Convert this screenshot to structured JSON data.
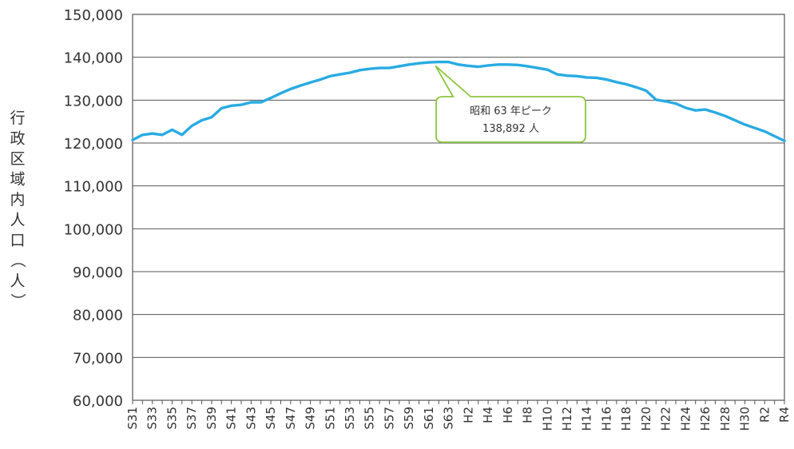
{
  "chart_data": {
    "type": "line",
    "ylabel": "行政区域内人口（人）",
    "xlabel": "",
    "title": "",
    "ylim": [
      60000,
      150000
    ],
    "y_ticks": [
      "60,000",
      "70,000",
      "80,000",
      "90,000",
      "100,000",
      "110,000",
      "120,000",
      "130,000",
      "140,000",
      "150,000"
    ],
    "y_tick_values": [
      60000,
      70000,
      80000,
      90000,
      100000,
      110000,
      120000,
      130000,
      140000,
      150000
    ],
    "grid": true,
    "legend": "none",
    "x_labels": [
      "S31",
      "S33",
      "S35",
      "S37",
      "S39",
      "S41",
      "S43",
      "S45",
      "S47",
      "S49",
      "S51",
      "S53",
      "S55",
      "S57",
      "S59",
      "S61",
      "S63",
      "H2",
      "H4",
      "H6",
      "H8",
      "H10",
      "H12",
      "H14",
      "H16",
      "H18",
      "H20",
      "H22",
      "H24",
      "H26",
      "H28",
      "H30",
      "R2",
      "R4"
    ],
    "x": [
      "S31",
      "S32",
      "S33",
      "S34",
      "S35",
      "S36",
      "S37",
      "S38",
      "S39",
      "S40",
      "S41",
      "S42",
      "S43",
      "S44",
      "S45",
      "S46",
      "S47",
      "S48",
      "S49",
      "S50",
      "S51",
      "S52",
      "S53",
      "S54",
      "S55",
      "S56",
      "S57",
      "S58",
      "S59",
      "S60",
      "S61",
      "S62",
      "S63",
      "H1",
      "H2",
      "H3",
      "H4",
      "H5",
      "H6",
      "H7",
      "H8",
      "H9",
      "H10",
      "H11",
      "H12",
      "H13",
      "H14",
      "H15",
      "H16",
      "H17",
      "H18",
      "H19",
      "H20",
      "H21",
      "H22",
      "H23",
      "H24",
      "H25",
      "H26",
      "H27",
      "H28",
      "H29",
      "H30",
      "R1",
      "R2",
      "R3",
      "R4"
    ],
    "series": [
      {
        "color": "#29abe2",
        "values": [
          120700,
          121900,
          122200,
          121900,
          123100,
          121900,
          124000,
          125300,
          126000,
          128100,
          128700,
          128900,
          129500,
          129500,
          130500,
          131600,
          132600,
          133400,
          134100,
          134800,
          135600,
          136000,
          136400,
          137000,
          137300,
          137500,
          137500,
          137900,
          138300,
          138600,
          138800,
          138892,
          138892,
          138300,
          138000,
          137800,
          138100,
          138300,
          138300,
          138200,
          137900,
          137500,
          137100,
          136000,
          135700,
          135600,
          135300,
          135200,
          134800,
          134200,
          133700,
          133000,
          132200,
          130100,
          129700,
          129200,
          128200,
          127600,
          127800,
          127100,
          126300,
          125300,
          124300,
          123500,
          122700,
          121600,
          120500
        ]
      }
    ],
    "annotations": [
      {
        "line1": "昭和 63 年ピーク",
        "line2": "138,892 人"
      }
    ]
  }
}
